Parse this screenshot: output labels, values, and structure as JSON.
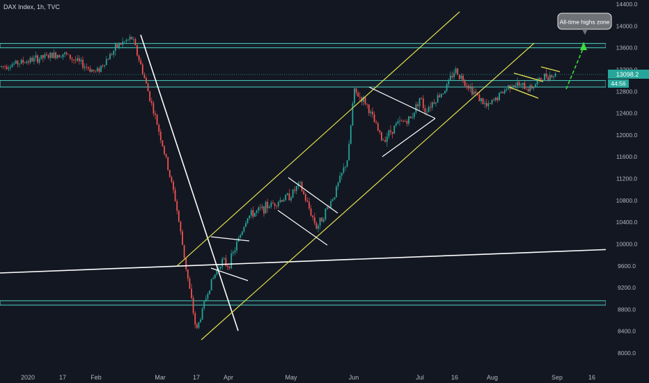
{
  "header": {
    "title": "DAX Index, 1h, TVC"
  },
  "price_tag": {
    "value": "13098.2",
    "countdown": "44:56"
  },
  "annotation": {
    "text": "All-time highs zone"
  },
  "colors": {
    "background": "#131722",
    "up": "#26a69a",
    "down": "#ef5350",
    "zone": "#4dd0c1",
    "channel": "#e3e34d",
    "trendline": "#ffffff",
    "arrow": "#3ddc3d",
    "price_tag": "#26a69a"
  },
  "chart_data": {
    "type": "candlestick",
    "title": "DAX Index, 1h, TVC",
    "y_axis": {
      "ticks": [
        "14400.0",
        "14000.0",
        "13600.0",
        "13200.0",
        "12800.0",
        "12400.0",
        "12000.0",
        "11600.0",
        "11200.0",
        "10800.0",
        "10400.0",
        "10000.0",
        "9600.0",
        "9200.0",
        "8800.0",
        "8400.0",
        "8000.0"
      ],
      "range": [
        7900,
        14500
      ]
    },
    "x_axis": {
      "ticks": [
        "2020",
        "17",
        "Feb",
        "Mar",
        "17",
        "Apr",
        "May",
        "Jun",
        "Jul",
        "16",
        "Aug",
        "Sep",
        "16"
      ]
    },
    "price_path": [
      [
        "2020",
        13250
      ],
      [
        "17",
        13500
      ],
      [
        "Feb",
        13150
      ],
      [
        "Feb 12",
        13650
      ],
      [
        "Feb 19",
        13780
      ],
      [
        "Feb 24",
        13200
      ],
      [
        "Mar",
        12000
      ],
      [
        "Mar 9",
        10800
      ],
      [
        "Mar 12",
        9500
      ],
      [
        "17",
        8400
      ],
      [
        "Mar 20",
        9200
      ],
      [
        "Mar 25",
        9700
      ],
      [
        "Apr",
        9600
      ],
      [
        "Apr 8",
        10500
      ],
      [
        "Apr 15",
        10700
      ],
      [
        "May",
        10900
      ],
      [
        "May 6",
        11100
      ],
      [
        "May 13",
        10300
      ],
      [
        "May 20",
        10900
      ],
      [
        "May 27",
        11600
      ],
      [
        "Jun",
        12800
      ],
      [
        "Jun 5",
        12600
      ],
      [
        "Jun 8",
        11900
      ],
      [
        "Jun 12",
        12200
      ],
      [
        "Jun 18",
        12300
      ],
      [
        "Jun 22",
        12450
      ],
      [
        "Jul",
        12700
      ],
      [
        "Jul 9",
        12850
      ],
      [
        "16",
        13200
      ],
      [
        "Jul 22",
        12800
      ],
      [
        "Jul 28",
        12500
      ],
      [
        "Aug",
        12600
      ],
      [
        "Aug 10",
        12950
      ],
      [
        "Aug 18",
        12850
      ],
      [
        "Aug 25",
        13100
      ],
      [
        "Sep",
        13098.2
      ]
    ],
    "horizontal_zones": [
      {
        "name": "All-time highs zone",
        "from": 13600,
        "to": 13680
      },
      {
        "from": 12880,
        "to": 13000
      },
      {
        "from": 8880,
        "to": 8960
      }
    ],
    "last_price": 13098.2,
    "grid": false,
    "legend": "none"
  }
}
